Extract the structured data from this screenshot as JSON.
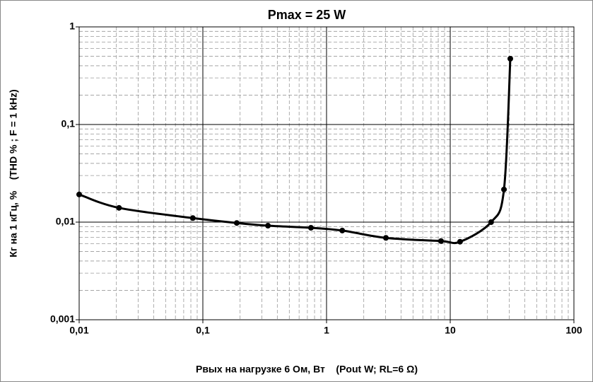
{
  "chart_data": {
    "type": "line",
    "title": "Pmax = 25 W",
    "x_label": "Рвых на нагрузке 6 Ом, Вт    (Pout W; RL=6 Ω)",
    "y_label": "Кг на 1 кГц, %    (THD % ; F = 1 kHz)",
    "x": [
      0.01,
      0.021,
      0.083,
      0.188,
      0.336,
      0.748,
      1.34,
      3.02,
      8.43,
      12.0,
      21.4,
      27.2,
      30.6
    ],
    "series": [
      {
        "name": "THD",
        "color": "#000000",
        "values": [
          0.0192,
          0.014,
          0.011,
          0.0098,
          0.0092,
          0.00875,
          0.0082,
          0.0069,
          0.0064,
          0.0063,
          0.01,
          0.0216,
          0.472
        ]
      }
    ],
    "xlim": [
      0.01,
      100
    ],
    "ylim": [
      0.001,
      1
    ],
    "xticks": [
      {
        "value": 0.01,
        "label": "0,01"
      },
      {
        "value": 0.1,
        "label": "0,1"
      },
      1,
      10,
      100
    ],
    "yticks": [
      {
        "value": 0.001,
        "label": "0,001"
      },
      {
        "value": 0.01,
        "label": "0,01"
      },
      {
        "value": 0.1,
        "label": "0,1"
      },
      1
    ],
    "xscale": "log",
    "yscale": "log",
    "grid": true,
    "minor_grid": true
  }
}
